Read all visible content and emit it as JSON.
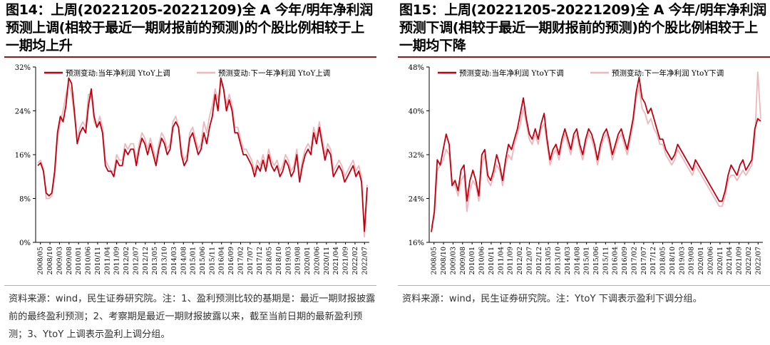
{
  "panels": [
    {
      "title": "图14：上周(20221205-20221209)全 A 今年/明年净利润预测上调(相较于最近一期财报前的预测)的个股比例相较于上一期均上升",
      "source": "资料来源：wind，民生证券研究院。注：1、盈利预测比较的基期是：最近一期财报披露前的最终盈利预测；2、考察期是最近一期财报披露以来，截至当前日期的最新盈利预测；3、YtoY 上调表示盈利上调分组。"
    },
    {
      "title": "图15：上周(20221205-20221209)全 A 今年/明年净利润预测下调(相较于最近一期财报前的预测)的个股比例相较于上一期均下降",
      "source": "资料来源：wind，民生证券研究院。注：YtoY 下调表示盈利下调分组。"
    }
  ],
  "colors": {
    "current": "#c0000f",
    "next": "#efb6bc",
    "axis": "#000000"
  },
  "chart_data": [
    {
      "type": "line",
      "title": "",
      "xlabel": "",
      "ylabel": "",
      "ylim": [
        0,
        32
      ],
      "yticks": [
        "0%",
        "8%",
        "16%",
        "24%",
        "32%"
      ],
      "x_ticks": [
        "2008/05",
        "2008/10",
        "2009/03",
        "2009/08",
        "2010/01",
        "2010/06",
        "2010/11",
        "2011/04",
        "2011/09",
        "2012/02",
        "2012/07",
        "2012/12",
        "2013/05",
        "2013/10",
        "2014/03",
        "2014/08",
        "2015/01",
        "2015/06",
        "2015/11",
        "2016/04",
        "2016/09",
        "2017/02",
        "2017/07",
        "2017/12",
        "2018/05",
        "2018/10",
        "2019/03",
        "2019/08",
        "2020/01",
        "2020/06",
        "2020/11",
        "2021/04",
        "2021/09",
        "2022/02",
        "2022/07"
      ],
      "legend": "top",
      "series": [
        {
          "name": "预测变动:当年净利润 YtoY上调",
          "values": [
            14,
            14.5,
            13,
            9,
            8.5,
            9,
            13,
            20,
            23,
            22,
            25,
            30,
            29,
            24,
            18,
            20,
            21,
            20,
            25,
            28,
            23,
            21,
            22,
            20,
            14,
            13,
            13,
            12,
            15,
            14,
            14,
            17,
            16,
            17,
            17,
            14,
            17,
            19,
            18,
            16,
            18,
            16,
            14,
            17,
            19,
            18,
            16,
            17,
            21,
            22,
            21,
            16,
            14,
            15,
            19,
            20,
            18,
            16,
            17,
            20,
            18,
            21,
            23,
            27,
            24,
            30,
            28,
            24,
            26,
            24,
            20,
            20,
            18,
            16,
            16,
            15,
            14,
            12,
            14,
            13,
            15,
            13,
            16,
            14,
            13,
            14,
            12,
            13,
            15,
            14,
            12,
            13,
            16,
            11,
            14,
            16,
            17,
            16,
            20,
            18,
            21,
            18,
            15,
            17,
            16,
            12,
            13,
            14,
            13,
            11,
            12,
            13,
            14,
            12,
            13,
            11,
            2,
            10
          ]
        },
        {
          "name": "预测变动:下一年净利润 YtoY上调",
          "values": [
            14.5,
            15,
            13.5,
            8,
            8,
            8.5,
            12,
            19,
            22,
            24,
            27,
            29,
            27,
            23,
            19,
            21,
            22,
            21,
            27,
            27,
            22,
            21,
            23,
            21,
            15,
            14,
            13,
            13,
            16,
            15,
            15,
            18,
            17,
            18,
            18,
            15,
            18,
            20,
            19,
            17,
            19,
            17,
            15,
            18,
            20,
            19,
            17,
            18,
            22,
            23,
            21,
            17,
            15,
            16,
            20,
            21,
            19,
            17,
            18,
            22,
            20,
            23,
            25,
            28,
            26,
            29,
            28,
            25,
            27,
            25,
            21,
            21,
            19,
            17,
            17,
            16,
            15,
            13,
            15,
            14,
            16,
            14,
            17,
            15,
            14,
            15,
            13,
            14,
            16,
            15,
            13,
            14,
            17,
            12,
            15,
            17,
            18,
            17,
            21,
            19,
            22,
            19,
            16,
            18,
            17,
            13,
            14,
            15,
            14,
            12,
            13,
            14,
            15,
            13,
            14,
            12,
            1,
            10.5
          ]
        }
      ]
    },
    {
      "type": "line",
      "title": "",
      "xlabel": "",
      "ylabel": "",
      "ylim": [
        16,
        50
      ],
      "yticks": [
        "16%",
        "24%",
        "32%",
        "40%",
        "48%"
      ],
      "x_ticks": [
        "2008/05",
        "2008/10",
        "2009/03",
        "2009/08",
        "2010/01",
        "2010/06",
        "2010/11",
        "2011/04",
        "2011/09",
        "2012/02",
        "2012/07",
        "2012/12",
        "2013/05",
        "2013/10",
        "2014/03",
        "2014/08",
        "2015/01",
        "2015/06",
        "2015/11",
        "2016/04",
        "2016/09",
        "2017/02",
        "2017/07",
        "2017/12",
        "2018/05",
        "2018/10",
        "2019/03",
        "2019/08",
        "2020/01",
        "2020/06",
        "2020/11",
        "2021/04",
        "2021/09",
        "2022/02",
        "2022/07"
      ],
      "legend": "top",
      "series": [
        {
          "name": "预测变动:当年净利润 YtoY下调",
          "values": [
            18,
            22,
            32,
            31,
            34,
            37,
            35,
            27,
            28,
            26,
            30,
            31,
            24,
            28,
            30,
            28,
            25,
            33,
            34,
            29,
            28,
            30,
            33,
            31,
            28,
            32,
            35,
            34,
            36,
            38,
            41,
            44,
            40,
            37,
            36,
            38,
            36,
            39,
            41,
            36,
            32,
            34,
            35,
            33,
            36,
            38,
            36,
            34,
            37,
            38,
            35,
            33,
            36,
            38,
            37,
            35,
            32,
            35,
            37,
            38,
            36,
            33,
            35,
            37,
            38,
            36,
            34,
            37,
            40,
            45,
            48,
            44,
            43,
            41,
            42,
            40,
            38,
            36,
            36,
            34,
            33,
            32,
            33,
            35,
            34,
            33,
            32,
            31,
            30,
            32,
            31,
            30,
            29,
            28,
            27,
            26,
            25,
            24,
            24,
            26,
            29,
            31,
            30,
            29,
            31,
            32,
            30,
            31,
            32,
            38,
            40,
            39.5
          ]
        },
        {
          "name": "预测变动:下一年净利润 YtoY下调",
          "values": [
            19,
            21,
            30,
            31,
            32,
            34,
            33,
            28,
            27,
            25,
            28,
            29,
            22,
            26,
            28,
            27,
            24,
            31,
            33,
            28,
            27,
            29,
            31,
            30,
            27,
            31,
            33,
            32,
            35,
            37,
            39,
            42,
            39,
            36,
            35,
            37,
            35,
            38,
            39,
            35,
            31,
            33,
            34,
            32,
            35,
            37,
            35,
            33,
            36,
            37,
            34,
            32,
            35,
            37,
            36,
            34,
            31,
            34,
            36,
            37,
            35,
            32,
            34,
            36,
            37,
            35,
            33,
            36,
            39,
            44,
            46,
            42,
            41,
            39,
            40,
            38,
            37,
            35,
            35,
            33,
            32,
            31,
            32,
            34,
            33,
            32,
            31,
            30,
            29,
            31,
            30,
            29,
            28,
            27,
            26,
            25,
            24,
            23,
            23,
            25,
            28,
            29,
            29,
            28,
            29,
            30,
            29,
            30,
            31,
            36,
            49,
            40
          ]
        }
      ]
    }
  ]
}
